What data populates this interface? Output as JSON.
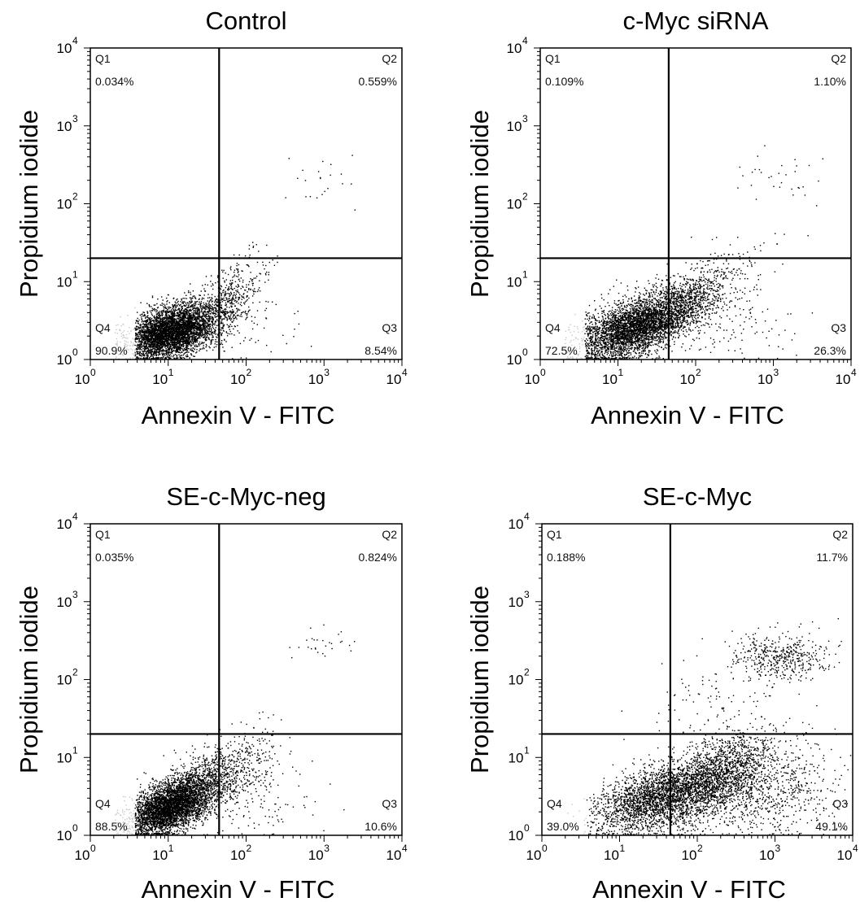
{
  "chart_data": [
    {
      "type": "scatter",
      "title": "Control",
      "xlabel": "Annexin V - FITC",
      "ylabel": "Propidium iodide",
      "x_scale": "log",
      "y_scale": "log",
      "xlim": [
        1,
        10000
      ],
      "ylim": [
        1,
        10000
      ],
      "gate": {
        "x": 45,
        "y": 20
      },
      "quadrants": [
        {
          "name": "Q1",
          "percent": "0.034%"
        },
        {
          "name": "Q2",
          "percent": "0.559%"
        },
        {
          "name": "Q3",
          "percent": "8.54%"
        },
        {
          "name": "Q4",
          "percent": "90.9%"
        }
      ],
      "clusters": [
        {
          "cx": 10,
          "cy": 2.2,
          "sx": 0.28,
          "sy": 0.16,
          "corr": 0.35,
          "n": 3600,
          "xmin": 3.7
        },
        {
          "cx": 18,
          "cy": 3.0,
          "sx": 0.35,
          "sy": 0.2,
          "corr": 0.5,
          "n": 1300,
          "xmin": 3.7
        },
        {
          "cx": 70,
          "cy": 8,
          "sx": 0.2,
          "sy": 0.25,
          "corr": 0.6,
          "n": 260,
          "xmin": 3.7
        },
        {
          "cx": 120,
          "cy": 2.5,
          "sx": 0.3,
          "sy": 0.25,
          "corr": 0,
          "n": 60,
          "xmin": 3.7
        },
        {
          "cx": 900,
          "cy": 250,
          "sx": 0.25,
          "sy": 0.18,
          "corr": 0,
          "n": 22,
          "xmin": 3.7
        }
      ]
    },
    {
      "type": "scatter",
      "title": "c-Myc siRNA",
      "xlabel": "Annexin V - FITC",
      "ylabel": "Propidium iodide",
      "x_scale": "log",
      "y_scale": "log",
      "xlim": [
        1,
        10000
      ],
      "ylim": [
        1,
        10000
      ],
      "gate": {
        "x": 45,
        "y": 20
      },
      "quadrants": [
        {
          "name": "Q1",
          "percent": "0.109%"
        },
        {
          "name": "Q2",
          "percent": "1.10%"
        },
        {
          "name": "Q3",
          "percent": "26.3%"
        },
        {
          "name": "Q4",
          "percent": "72.5%"
        }
      ],
      "clusters": [
        {
          "cx": 14,
          "cy": 2.5,
          "sx": 0.35,
          "sy": 0.2,
          "corr": 0.5,
          "n": 3200,
          "xmin": 3.7
        },
        {
          "cx": 55,
          "cy": 4.5,
          "sx": 0.35,
          "sy": 0.25,
          "corr": 0.6,
          "n": 1400,
          "xmin": 3.7
        },
        {
          "cx": 250,
          "cy": 12,
          "sx": 0.35,
          "sy": 0.25,
          "corr": 0.5,
          "n": 120,
          "xmin": 3.7
        },
        {
          "cx": 400,
          "cy": 2.5,
          "sx": 0.4,
          "sy": 0.25,
          "corr": 0,
          "n": 90,
          "xmin": 3.7
        },
        {
          "cx": 1300,
          "cy": 220,
          "sx": 0.25,
          "sy": 0.15,
          "corr": 0,
          "n": 32,
          "xmin": 3.7
        }
      ]
    },
    {
      "type": "scatter",
      "title": "SE-c-Myc-neg",
      "xlabel": "Annexin V - FITC",
      "ylabel": "Propidium iodide",
      "x_scale": "log",
      "y_scale": "log",
      "xlim": [
        1,
        10000
      ],
      "ylim": [
        1,
        10000
      ],
      "gate": {
        "x": 45,
        "y": 20
      },
      "quadrants": [
        {
          "name": "Q1",
          "percent": "0.035%"
        },
        {
          "name": "Q2",
          "percent": "0.824%"
        },
        {
          "name": "Q3",
          "percent": "10.6%"
        },
        {
          "name": "Q4",
          "percent": "88.5%"
        }
      ],
      "clusters": [
        {
          "cx": 10,
          "cy": 2.3,
          "sx": 0.27,
          "sy": 0.18,
          "corr": 0.5,
          "n": 3500,
          "xmin": 3.7
        },
        {
          "cx": 22,
          "cy": 4.0,
          "sx": 0.3,
          "sy": 0.25,
          "corr": 0.6,
          "n": 1300,
          "xmin": 3.7
        },
        {
          "cx": 90,
          "cy": 7,
          "sx": 0.25,
          "sy": 0.28,
          "corr": 0.4,
          "n": 300,
          "xmin": 3.7
        },
        {
          "cx": 200,
          "cy": 3,
          "sx": 0.35,
          "sy": 0.25,
          "corr": 0,
          "n": 80,
          "xmin": 3.7
        },
        {
          "cx": 900,
          "cy": 280,
          "sx": 0.22,
          "sy": 0.13,
          "corr": 0,
          "n": 28,
          "xmin": 3.7
        }
      ]
    },
    {
      "type": "scatter",
      "title": "SE-c-Myc",
      "xlabel": "Annexin V - FITC",
      "ylabel": "Propidium iodide",
      "x_scale": "log",
      "y_scale": "log",
      "xlim": [
        1,
        10000
      ],
      "ylim": [
        1,
        10000
      ],
      "gate": {
        "x": 45,
        "y": 20
      },
      "quadrants": [
        {
          "name": "Q1",
          "percent": "0.188%"
        },
        {
          "name": "Q2",
          "percent": "11.7%"
        },
        {
          "name": "Q3",
          "percent": "49.1%"
        },
        {
          "name": "Q4",
          "percent": "39.0%"
        }
      ],
      "clusters": [
        {
          "cx": 25,
          "cy": 3.0,
          "sx": 0.4,
          "sy": 0.22,
          "corr": 0.5,
          "n": 2000,
          "xmin": 3.7
        },
        {
          "cx": 140,
          "cy": 5,
          "sx": 0.4,
          "sy": 0.28,
          "corr": 0.55,
          "n": 2200,
          "xmin": 3.7
        },
        {
          "cx": 800,
          "cy": 3.5,
          "sx": 0.45,
          "sy": 0.3,
          "corr": 0.2,
          "n": 700,
          "xmin": 3.7
        },
        {
          "cx": 1200,
          "cy": 200,
          "sx": 0.3,
          "sy": 0.15,
          "corr": 0,
          "n": 450,
          "xmin": 3.7
        },
        {
          "cx": 250,
          "cy": 40,
          "sx": 0.5,
          "sy": 0.4,
          "corr": 0.3,
          "n": 160,
          "xmin": 3.7
        }
      ]
    }
  ]
}
